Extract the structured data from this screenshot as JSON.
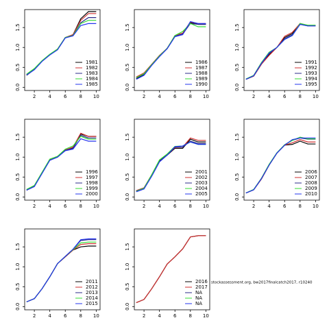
{
  "chart_data": [
    {
      "type": "line",
      "x": [
        1,
        2,
        3,
        4,
        5,
        6,
        7,
        8,
        9,
        10
      ],
      "xlim": [
        0.75,
        10.5
      ],
      "ylim": [
        -0.08,
        1.95
      ],
      "xticks": [
        2,
        4,
        6,
        8,
        10
      ],
      "yticks": [
        {
          "value": 0,
          "label": "0.0"
        },
        {
          "value": 0.5,
          "label": "0.5"
        },
        {
          "value": 1,
          "label": "1.0"
        },
        {
          "value": 1.5,
          "label": "1.5"
        }
      ],
      "legend": "bottomright",
      "series": [
        {
          "name": "1981",
          "color": "#000000",
          "values": [
            0.3,
            0.45,
            0.66,
            0.82,
            0.95,
            1.25,
            1.32,
            1.72,
            1.9,
            1.9
          ]
        },
        {
          "name": "1982",
          "color": "#d03030",
          "values": [
            0.32,
            0.46,
            0.66,
            0.82,
            0.96,
            1.25,
            1.32,
            1.68,
            1.85,
            1.85
          ]
        },
        {
          "name": "1983",
          "color": "#2a2a8a",
          "values": [
            0.31,
            0.45,
            0.66,
            0.82,
            0.95,
            1.24,
            1.3,
            1.62,
            1.75,
            1.75
          ]
        },
        {
          "name": "1984",
          "color": "#33dd33",
          "values": [
            0.33,
            0.47,
            0.67,
            0.83,
            0.96,
            1.25,
            1.3,
            1.6,
            1.68,
            1.68
          ]
        },
        {
          "name": "1985",
          "color": "#2233ee",
          "values": [
            0.31,
            0.44,
            0.65,
            0.81,
            0.94,
            1.24,
            1.29,
            1.55,
            1.6,
            1.6
          ]
        }
      ]
    },
    {
      "type": "line",
      "x": [
        1,
        2,
        3,
        4,
        5,
        6,
        7,
        8,
        9,
        10
      ],
      "xlim": [
        0.75,
        10.5
      ],
      "ylim": [
        -0.08,
        1.95
      ],
      "xticks": [
        2,
        4,
        6,
        8,
        10
      ],
      "yticks": [
        {
          "value": 0,
          "label": "0.0"
        },
        {
          "value": 0.5,
          "label": "0.5"
        },
        {
          "value": 1,
          "label": "1.0"
        },
        {
          "value": 1.5,
          "label": "1.5"
        }
      ],
      "legend": "bottomright",
      "series": [
        {
          "name": "1986",
          "color": "#000000",
          "values": [
            0.22,
            0.32,
            0.56,
            0.78,
            0.98,
            1.28,
            1.33,
            1.62,
            1.58,
            1.58
          ]
        },
        {
          "name": "1987",
          "color": "#d03030",
          "values": [
            0.26,
            0.36,
            0.58,
            0.8,
            0.98,
            1.3,
            1.36,
            1.64,
            1.6,
            1.6
          ]
        },
        {
          "name": "1988",
          "color": "#2a2a8a",
          "values": [
            0.23,
            0.33,
            0.56,
            0.78,
            0.97,
            1.28,
            1.34,
            1.6,
            1.58,
            1.58
          ]
        },
        {
          "name": "1989",
          "color": "#33dd33",
          "values": [
            0.24,
            0.34,
            0.57,
            0.79,
            0.98,
            1.3,
            1.4,
            1.6,
            1.52,
            1.52
          ]
        },
        {
          "name": "1990",
          "color": "#2233ee",
          "values": [
            0.2,
            0.3,
            0.55,
            0.77,
            0.97,
            1.27,
            1.32,
            1.65,
            1.6,
            1.6
          ]
        }
      ]
    },
    {
      "type": "line",
      "x": [
        1,
        2,
        3,
        4,
        5,
        6,
        7,
        8,
        9,
        10
      ],
      "xlim": [
        0.75,
        10.5
      ],
      "ylim": [
        -0.08,
        1.95
      ],
      "xticks": [
        2,
        4,
        6,
        8,
        10
      ],
      "yticks": [
        {
          "value": 0,
          "label": "0.0"
        },
        {
          "value": 0.5,
          "label": "0.5"
        },
        {
          "value": 1,
          "label": "1.0"
        },
        {
          "value": 1.5,
          "label": "1.5"
        }
      ],
      "legend": "bottomright",
      "series": [
        {
          "name": "1991",
          "color": "#000000",
          "values": [
            0.2,
            0.28,
            0.58,
            0.82,
            1.0,
            1.25,
            1.35,
            1.6,
            1.55,
            1.55
          ]
        },
        {
          "name": "1992",
          "color": "#d03030",
          "values": [
            0.2,
            0.28,
            0.58,
            0.8,
            1.0,
            1.28,
            1.38,
            1.6,
            1.55,
            1.55
          ]
        },
        {
          "name": "1993",
          "color": "#2a2a8a",
          "values": [
            0.2,
            0.29,
            0.6,
            0.85,
            1.0,
            1.22,
            1.32,
            1.58,
            1.54,
            1.54
          ]
        },
        {
          "name": "1994",
          "color": "#33dd33",
          "values": [
            0.21,
            0.3,
            0.62,
            0.88,
            1.0,
            1.2,
            1.3,
            1.6,
            1.56,
            1.56
          ]
        },
        {
          "name": "1995",
          "color": "#2233ee",
          "values": [
            0.2,
            0.29,
            0.6,
            0.86,
            1.0,
            1.2,
            1.3,
            1.58,
            1.54,
            1.54
          ]
        }
      ]
    },
    {
      "type": "line",
      "x": [
        1,
        2,
        3,
        4,
        5,
        6,
        7,
        8,
        9,
        10
      ],
      "xlim": [
        0.75,
        10.5
      ],
      "ylim": [
        -0.08,
        1.95
      ],
      "xticks": [
        2,
        4,
        6,
        8,
        10
      ],
      "yticks": [
        {
          "value": 0,
          "label": "0.0"
        },
        {
          "value": 0.5,
          "label": "0.5"
        },
        {
          "value": 1,
          "label": "1.0"
        },
        {
          "value": 1.5,
          "label": "1.5"
        }
      ],
      "legend": "bottomright",
      "series": [
        {
          "name": "1996",
          "color": "#000000",
          "values": [
            0.17,
            0.27,
            0.6,
            0.93,
            1.0,
            1.17,
            1.24,
            1.58,
            1.52,
            1.52
          ]
        },
        {
          "name": "1997",
          "color": "#d03030",
          "values": [
            0.18,
            0.28,
            0.61,
            0.94,
            1.02,
            1.18,
            1.25,
            1.6,
            1.52,
            1.52
          ]
        },
        {
          "name": "1998",
          "color": "#2a2a8a",
          "values": [
            0.17,
            0.27,
            0.6,
            0.92,
            1.0,
            1.17,
            1.22,
            1.55,
            1.48,
            1.48
          ]
        },
        {
          "name": "1999",
          "color": "#33dd33",
          "values": [
            0.19,
            0.29,
            0.62,
            0.95,
            1.02,
            1.2,
            1.28,
            1.52,
            1.45,
            1.45
          ]
        },
        {
          "name": "2000",
          "color": "#2233ee",
          "values": [
            0.17,
            0.26,
            0.59,
            0.92,
            1.0,
            1.16,
            1.2,
            1.46,
            1.4,
            1.4
          ]
        }
      ]
    },
    {
      "type": "line",
      "x": [
        1,
        2,
        3,
        4,
        5,
        6,
        7,
        8,
        9,
        10
      ],
      "xlim": [
        0.75,
        10.5
      ],
      "ylim": [
        -0.08,
        1.95
      ],
      "xticks": [
        2,
        4,
        6,
        8,
        10
      ],
      "yticks": [
        {
          "value": 0,
          "label": "0.0"
        },
        {
          "value": 0.5,
          "label": "0.5"
        },
        {
          "value": 1,
          "label": "1.0"
        },
        {
          "value": 1.5,
          "label": "1.5"
        }
      ],
      "legend": "bottomright",
      "series": [
        {
          "name": "2001",
          "color": "#000000",
          "values": [
            0.15,
            0.22,
            0.55,
            0.9,
            1.05,
            1.22,
            1.22,
            1.45,
            1.38,
            1.38
          ]
        },
        {
          "name": "2002",
          "color": "#d03030",
          "values": [
            0.16,
            0.23,
            0.56,
            0.92,
            1.06,
            1.24,
            1.25,
            1.48,
            1.42,
            1.42
          ]
        },
        {
          "name": "2003",
          "color": "#2a2a8a",
          "values": [
            0.15,
            0.22,
            0.55,
            0.91,
            1.06,
            1.25,
            1.25,
            1.4,
            1.34,
            1.34
          ]
        },
        {
          "name": "2004",
          "color": "#33dd33",
          "values": [
            0.14,
            0.22,
            0.56,
            0.93,
            1.08,
            1.27,
            1.28,
            1.38,
            1.32,
            1.32
          ]
        },
        {
          "name": "2005",
          "color": "#2233ee",
          "values": [
            0.13,
            0.2,
            0.52,
            0.88,
            1.05,
            1.26,
            1.28,
            1.38,
            1.32,
            1.32
          ]
        }
      ]
    },
    {
      "type": "line",
      "x": [
        1,
        2,
        3,
        4,
        5,
        6,
        7,
        8,
        9,
        10
      ],
      "xlim": [
        0.75,
        10.5
      ],
      "ylim": [
        -0.08,
        1.95
      ],
      "xticks": [
        2,
        4,
        6,
        8,
        10
      ],
      "yticks": [
        {
          "value": 0,
          "label": "0.0"
        },
        {
          "value": 0.5,
          "label": "0.5"
        },
        {
          "value": 1,
          "label": "1.0"
        },
        {
          "value": 1.5,
          "label": "1.5"
        }
      ],
      "legend": "bottomright",
      "series": [
        {
          "name": "2006",
          "color": "#000000",
          "values": [
            0.1,
            0.18,
            0.45,
            0.8,
            1.1,
            1.3,
            1.32,
            1.4,
            1.33,
            1.33
          ]
        },
        {
          "name": "2007",
          "color": "#d03030",
          "values": [
            0.1,
            0.18,
            0.45,
            0.8,
            1.1,
            1.3,
            1.36,
            1.44,
            1.38,
            1.38
          ]
        },
        {
          "name": "2008",
          "color": "#2a2a8a",
          "values": [
            0.1,
            0.18,
            0.46,
            0.81,
            1.1,
            1.31,
            1.42,
            1.48,
            1.45,
            1.45
          ]
        },
        {
          "name": "2009",
          "color": "#33dd33",
          "values": [
            0.1,
            0.19,
            0.47,
            0.82,
            1.11,
            1.31,
            1.42,
            1.5,
            1.46,
            1.46
          ]
        },
        {
          "name": "2010",
          "color": "#2233ee",
          "values": [
            0.1,
            0.18,
            0.46,
            0.8,
            1.1,
            1.3,
            1.44,
            1.48,
            1.48,
            1.48
          ]
        }
      ]
    },
    {
      "type": "line",
      "x": [
        1,
        2,
        3,
        4,
        5,
        6,
        7,
        8,
        9,
        10
      ],
      "xlim": [
        0.75,
        10.5
      ],
      "ylim": [
        -0.08,
        1.95
      ],
      "xticks": [
        2,
        4,
        6,
        8,
        10
      ],
      "yticks": [
        {
          "value": 0,
          "label": "0.0"
        },
        {
          "value": 0.5,
          "label": "0.5"
        },
        {
          "value": 1,
          "label": "1.0"
        },
        {
          "value": 1.5,
          "label": "1.5"
        }
      ],
      "legend": "bottomright",
      "series": [
        {
          "name": "2011",
          "color": "#000000",
          "values": [
            0.12,
            0.2,
            0.45,
            0.75,
            1.08,
            1.25,
            1.42,
            1.5,
            1.52,
            1.52
          ]
        },
        {
          "name": "2012",
          "color": "#d03030",
          "values": [
            0.12,
            0.2,
            0.45,
            0.75,
            1.08,
            1.25,
            1.42,
            1.56,
            1.58,
            1.58
          ]
        },
        {
          "name": "2013",
          "color": "#2a2a8a",
          "values": [
            0.12,
            0.2,
            0.45,
            0.75,
            1.08,
            1.26,
            1.44,
            1.66,
            1.68,
            1.68
          ]
        },
        {
          "name": "2014",
          "color": "#33dd33",
          "values": [
            0.12,
            0.2,
            0.45,
            0.75,
            1.08,
            1.26,
            1.43,
            1.6,
            1.62,
            1.62
          ]
        },
        {
          "name": "2015",
          "color": "#2233ee",
          "values": [
            0.12,
            0.2,
            0.45,
            0.75,
            1.08,
            1.26,
            1.44,
            1.68,
            1.7,
            1.7
          ]
        }
      ]
    },
    {
      "type": "line",
      "x": [
        1,
        2,
        3,
        4,
        5,
        6,
        7,
        8,
        9,
        10
      ],
      "xlim": [
        0.75,
        10.5
      ],
      "ylim": [
        -0.08,
        1.95
      ],
      "xticks": [
        2,
        4,
        6,
        8,
        10
      ],
      "yticks": [
        {
          "value": 0,
          "label": "0.0"
        },
        {
          "value": 0.5,
          "label": "0.5"
        },
        {
          "value": 1,
          "label": "1.0"
        },
        {
          "value": 1.5,
          "label": "1.5"
        }
      ],
      "legend": "bottomright",
      "annotation": "stockassessment.org, bw2017finalcatch2017, r10240",
      "series": [
        {
          "name": "2016",
          "color": "#000000",
          "values": [
            0.1,
            0.18,
            0.45,
            0.75,
            1.07,
            1.25,
            1.45,
            1.75,
            1.78,
            1.78
          ]
        },
        {
          "name": "2017",
          "color": "#d03030",
          "values": [
            0.1,
            0.18,
            0.45,
            0.75,
            1.07,
            1.25,
            1.45,
            1.75,
            1.78,
            1.78
          ]
        },
        {
          "name": "NA",
          "color": "#2a2a8a",
          "values": [
            null,
            null,
            null,
            null,
            null,
            null,
            null,
            null,
            null,
            null
          ]
        },
        {
          "name": "NA",
          "color": "#33dd33",
          "values": [
            null,
            null,
            null,
            null,
            null,
            null,
            null,
            null,
            null,
            null
          ]
        },
        {
          "name": "NA",
          "color": "#2233ee",
          "values": [
            null,
            null,
            null,
            null,
            null,
            null,
            null,
            null,
            null,
            null
          ]
        }
      ]
    }
  ]
}
